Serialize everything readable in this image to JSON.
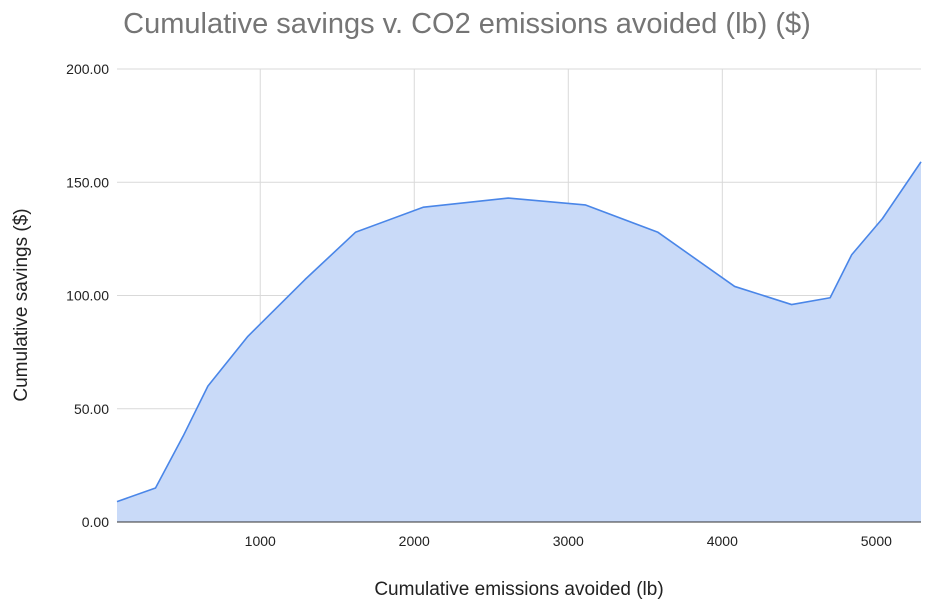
{
  "chart_data": {
    "type": "area",
    "title": "Cumulative savings v. CO2 emissions avoided (lb) ($)",
    "xlabel": "Cumulative emissions avoided (lb)",
    "ylabel": "Cumulative savings ($)",
    "xlim": [
      70,
      5290
    ],
    "ylim": [
      0,
      200
    ],
    "x_ticks": [
      "1000",
      "2000",
      "3000",
      "4000",
      "5000"
    ],
    "y_ticks": [
      "0.00",
      "50.00",
      "100.00",
      "150.00",
      "200.00"
    ],
    "grid": true,
    "legend": "none",
    "series": [
      {
        "color": "#4a86e8",
        "fill": "#c9daf8",
        "x": [
          70,
          320,
          500,
          660,
          920,
          1290,
          1620,
          2060,
          2610,
          3110,
          3580,
          4080,
          4450,
          4700,
          4840,
          5040,
          5290
        ],
        "y": [
          9,
          15,
          38,
          60,
          82,
          107,
          128,
          139,
          143,
          140,
          128,
          104,
          96,
          99,
          118,
          134,
          159
        ]
      }
    ]
  }
}
